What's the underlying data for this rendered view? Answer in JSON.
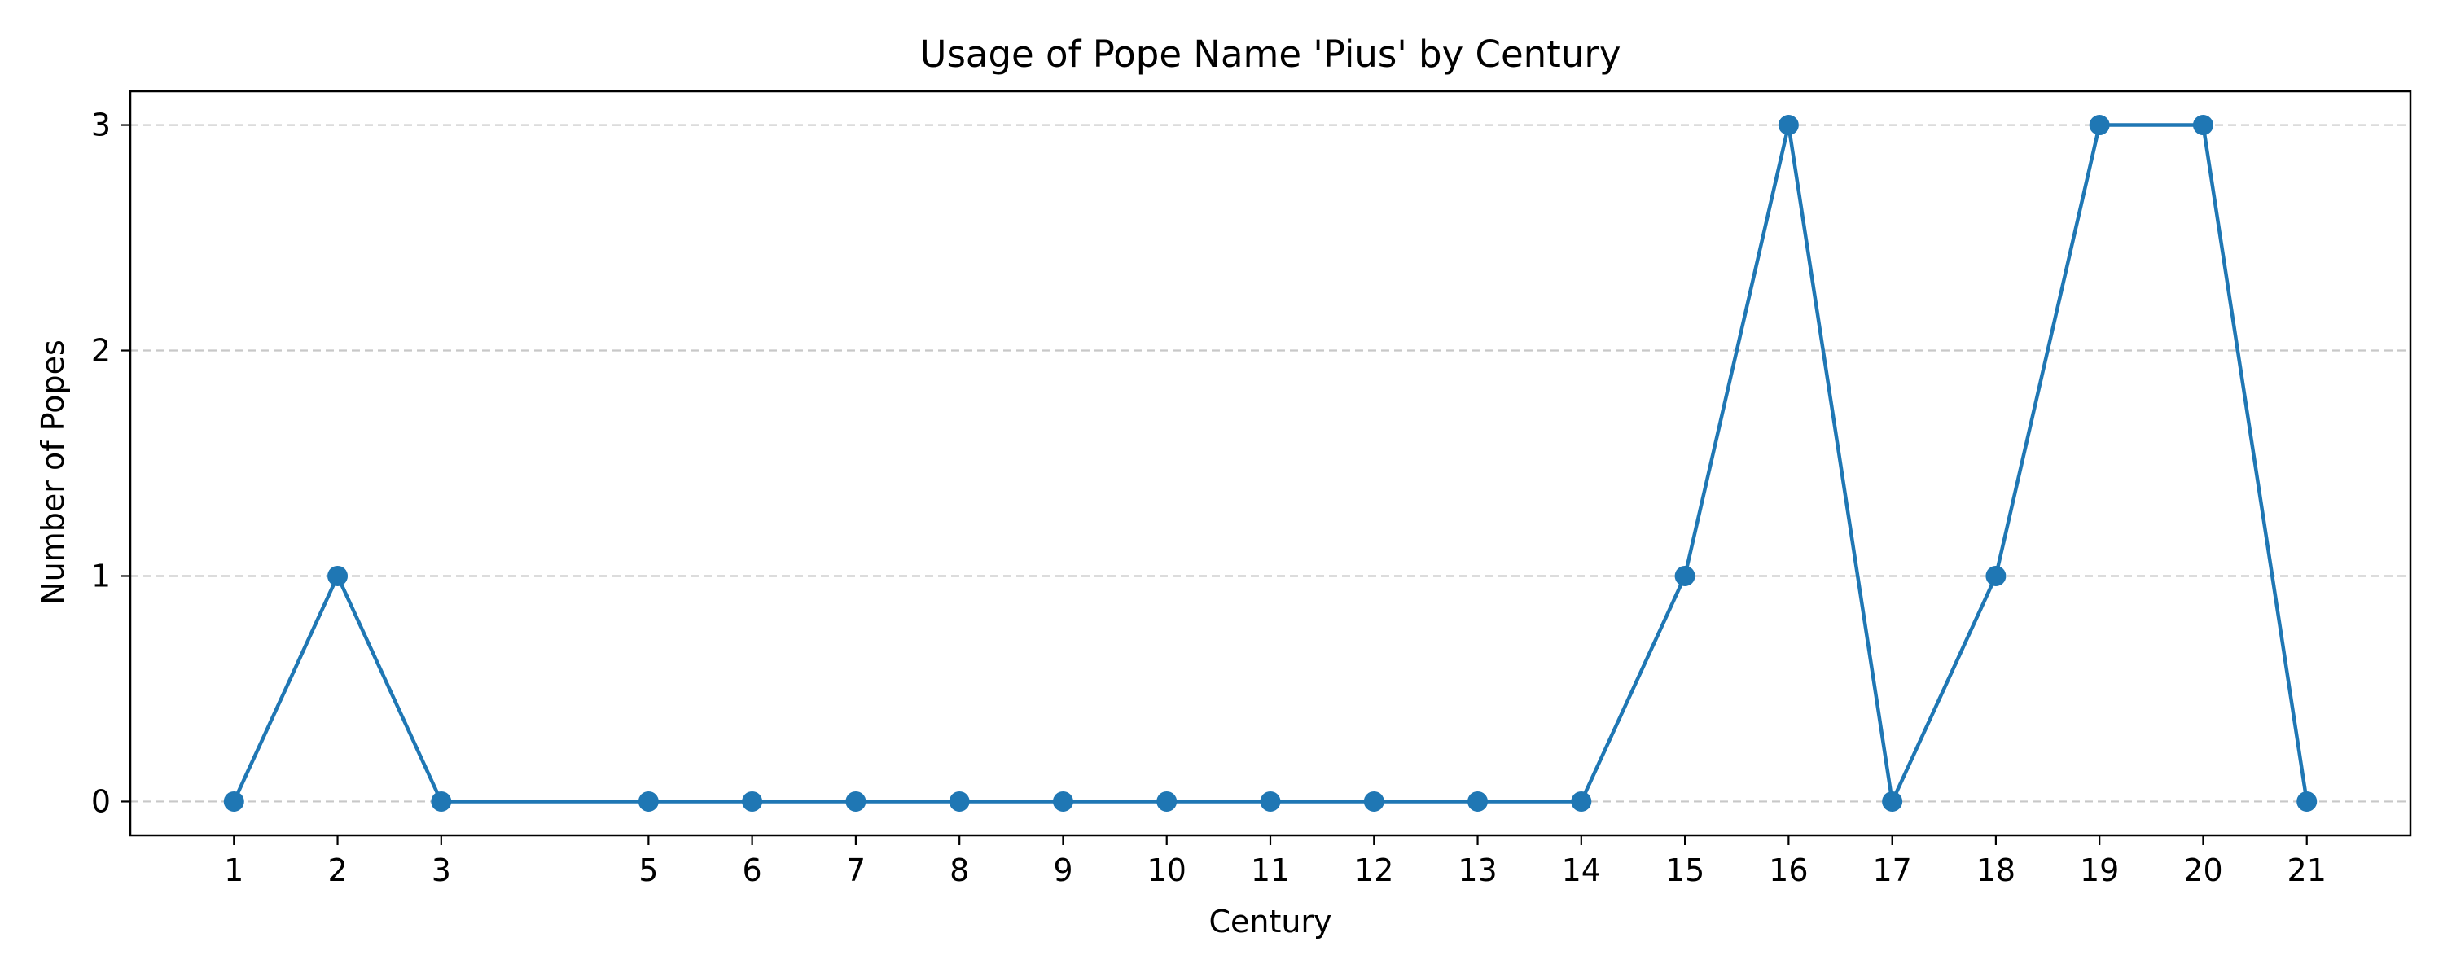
{
  "chart_data": {
    "type": "line",
    "title": "Usage of Pope Name 'Pius' by Century",
    "xlabel": "Century",
    "ylabel": "Number of Popes",
    "x": [
      1,
      2,
      3,
      5,
      6,
      7,
      8,
      9,
      10,
      11,
      12,
      13,
      14,
      15,
      16,
      17,
      18,
      19,
      20,
      21
    ],
    "y": [
      0,
      1,
      0,
      0,
      0,
      0,
      0,
      0,
      0,
      0,
      0,
      0,
      0,
      1,
      3,
      0,
      1,
      3,
      3,
      0
    ],
    "xticks": [
      1,
      2,
      3,
      5,
      6,
      7,
      8,
      9,
      10,
      11,
      12,
      13,
      14,
      15,
      16,
      17,
      18,
      19,
      20,
      21
    ],
    "yticks": [
      0,
      1,
      2,
      3
    ],
    "xlim": [
      0,
      22
    ],
    "ylim": [
      -0.15,
      3.15
    ],
    "grid": "y-dashed",
    "legend": "none",
    "colors": {
      "line": "#1f77b4",
      "grid": "#c8c8c8",
      "axes": "#000000"
    }
  }
}
